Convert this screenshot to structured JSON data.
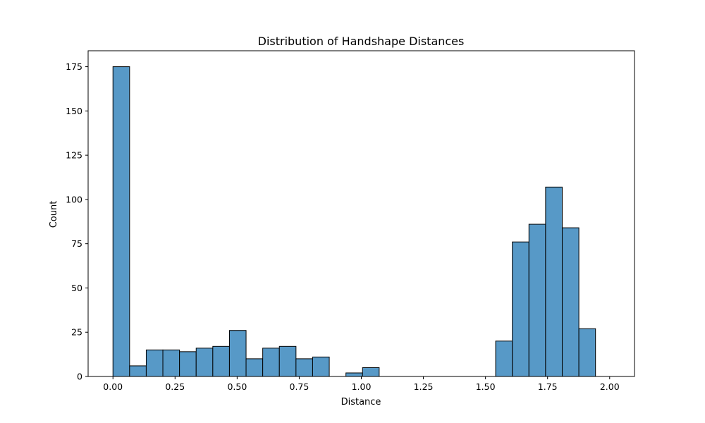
{
  "chart_data": {
    "type": "bar",
    "title": "Distribution of Handshape Distances",
    "xlabel": "Distance",
    "ylabel": "Count",
    "xlim": [
      -0.1,
      2.1
    ],
    "ylim": [
      0,
      184
    ],
    "xticks": [
      0.0,
      0.25,
      0.5,
      0.75,
      1.0,
      1.25,
      1.5,
      1.75,
      2.0
    ],
    "xtick_labels": [
      "0.00",
      "0.25",
      "0.50",
      "0.75",
      "1.00",
      "1.25",
      "1.50",
      "1.75",
      "2.00"
    ],
    "yticks": [
      0,
      25,
      50,
      75,
      100,
      125,
      150,
      175
    ],
    "ytick_labels": [
      "0",
      "25",
      "50",
      "75",
      "100",
      "125",
      "150",
      "175"
    ],
    "bin_start": 0.0,
    "bin_width": 0.067,
    "values": [
      175,
      6,
      15,
      15,
      14,
      16,
      17,
      26,
      10,
      16,
      17,
      10,
      11,
      0,
      2,
      5,
      0,
      0,
      0,
      0,
      0,
      0,
      0,
      20,
      76,
      86,
      107,
      84,
      27
    ],
    "bar_color": "#5799c7",
    "edge_color": "#000000",
    "grid": false,
    "legend": "none"
  }
}
